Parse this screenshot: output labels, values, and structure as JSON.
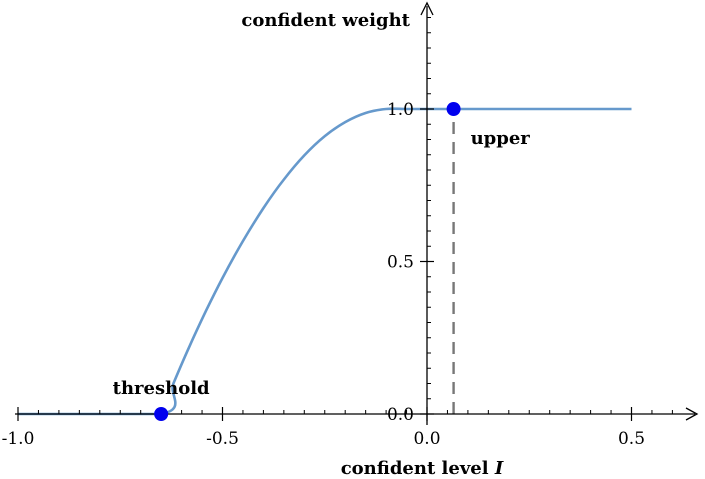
{
  "chart_data": {
    "type": "line",
    "xlabel": "confident level",
    "xlabel_var": "I",
    "ylabel": "confident weight",
    "xlim": [
      -1.0,
      0.6
    ],
    "ylim": [
      0.0,
      1.3
    ],
    "x_ticks": [
      {
        "value": -1.0,
        "label": "-1.0"
      },
      {
        "value": -0.5,
        "label": "-0.5"
      },
      {
        "value": 0.0,
        "label": "0.0"
      },
      {
        "value": 0.5,
        "label": "0.5"
      }
    ],
    "y_ticks": [
      {
        "value": 0.0,
        "label": "0.0"
      },
      {
        "value": 0.5,
        "label": "0.5"
      },
      {
        "value": 1.0,
        "label": "1.0"
      }
    ],
    "series": [
      {
        "color": "#6699cc",
        "points": [
          [
            -1.0,
            0.0
          ],
          [
            -0.65,
            0.0
          ],
          [
            -0.62,
            0.1
          ],
          [
            -0.58,
            0.224
          ],
          [
            -0.54,
            0.339
          ],
          [
            -0.5,
            0.446
          ],
          [
            -0.45,
            0.567
          ],
          [
            -0.4,
            0.675
          ],
          [
            -0.35,
            0.769
          ],
          [
            -0.3,
            0.848
          ],
          [
            -0.25,
            0.911
          ],
          [
            -0.2,
            0.957
          ],
          [
            -0.15,
            0.987
          ],
          [
            -0.1,
            1.0
          ],
          [
            -0.05,
            1.0
          ],
          [
            0.0,
            1.0
          ],
          [
            0.065,
            1.0
          ],
          [
            0.5,
            1.0
          ]
        ]
      }
    ],
    "markers": [
      {
        "x": -0.65,
        "y": 0.0,
        "label": "threshold",
        "color": "#0000ee"
      },
      {
        "x": 0.065,
        "y": 1.0,
        "label": "upper",
        "color": "#0000ee"
      }
    ],
    "guide_line": {
      "x": 0.065,
      "y_from": 0.0,
      "y_to": 1.0,
      "style": "dashed",
      "color": "#777777"
    },
    "grid": false
  }
}
